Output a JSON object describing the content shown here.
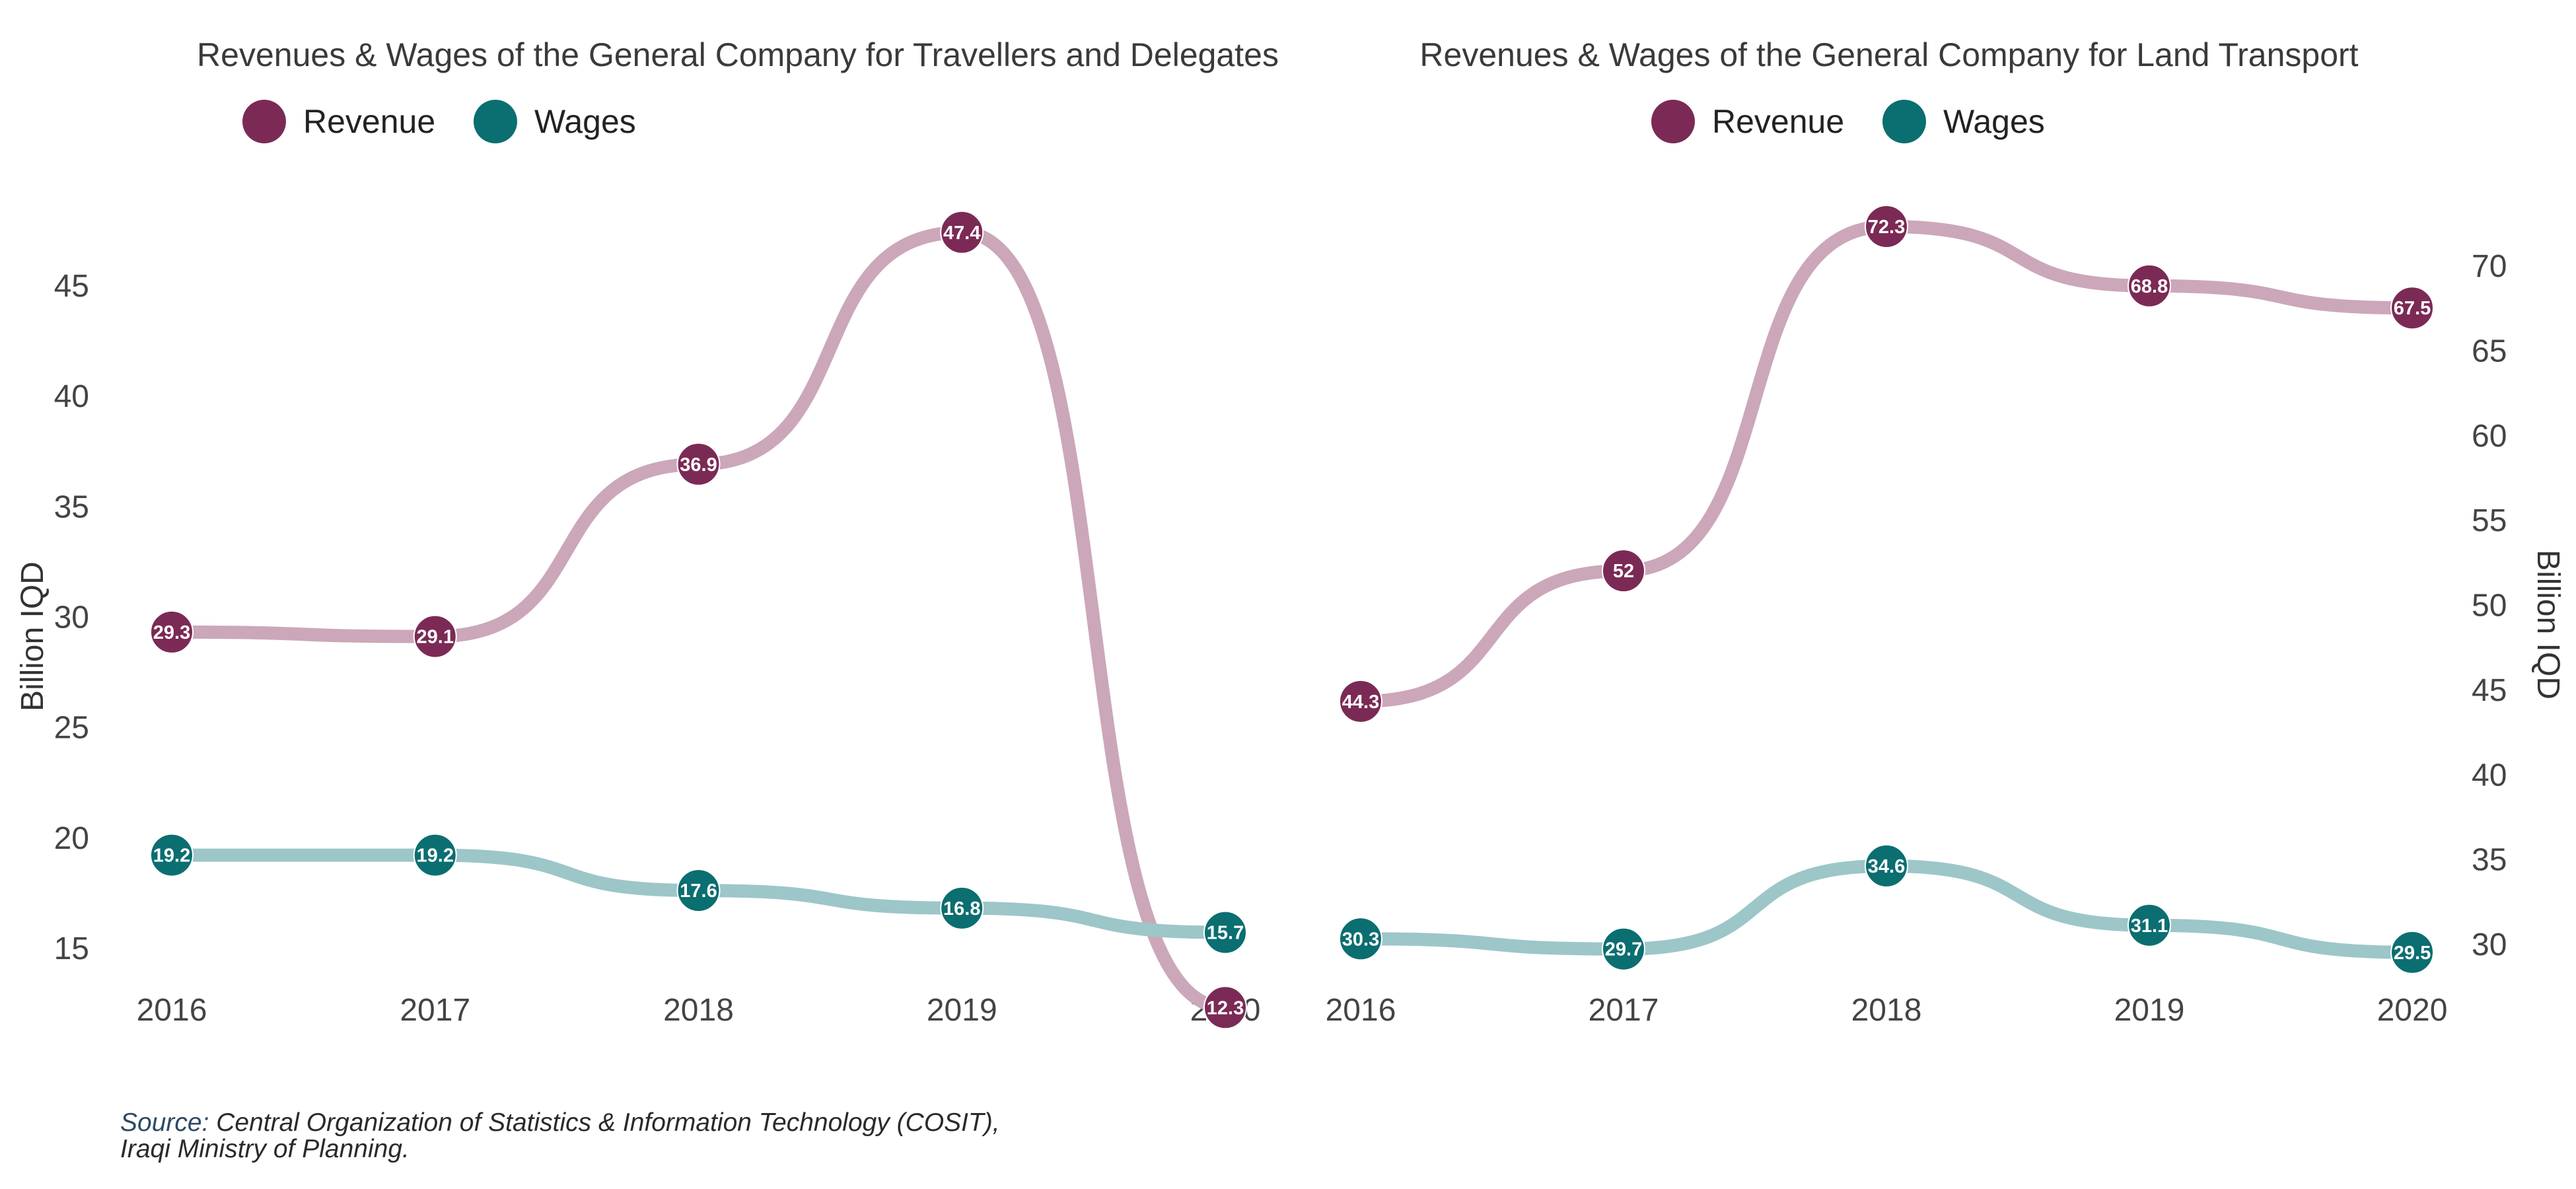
{
  "chart_data": [
    {
      "type": "line",
      "title": "Revenues & Wages of the General Company for Travellers and Delegates",
      "x": [
        "2016",
        "2017",
        "2018",
        "2019",
        "2020"
      ],
      "ylabel": "Billion IQD",
      "y_axis_side": "left",
      "ylim": [
        11,
        48
      ],
      "yticks": [
        15,
        20,
        25,
        30,
        35,
        40,
        45
      ],
      "grid": false,
      "legend_position": "top",
      "series": [
        {
          "name": "Revenue",
          "color": "#7b2a55",
          "line_color": "#cba7b9",
          "values": [
            29.3,
            29.1,
            36.9,
            47.4,
            12.3
          ]
        },
        {
          "name": "Wages",
          "color": "#0b6e70",
          "line_color": "#9dc6c9",
          "values": [
            19.2,
            19.2,
            17.6,
            16.8,
            15.7
          ]
        }
      ]
    },
    {
      "type": "line",
      "title": "Revenues & Wages of the General Company for Land Transport",
      "x": [
        "2016",
        "2017",
        "2018",
        "2019",
        "2020"
      ],
      "ylabel": "Billion IQD",
      "y_axis_side": "right",
      "ylim": [
        27,
        75
      ],
      "yticks": [
        30,
        35,
        40,
        45,
        50,
        55,
        60,
        65,
        70
      ],
      "grid": false,
      "legend_position": "top",
      "series": [
        {
          "name": "Revenue",
          "color": "#7b2a55",
          "line_color": "#cba7b9",
          "values": [
            44.3,
            52,
            72.3,
            68.8,
            67.5
          ]
        },
        {
          "name": "Wages",
          "color": "#0b6e70",
          "line_color": "#9dc6c9",
          "values": [
            30.3,
            29.7,
            34.6,
            31.1,
            29.5
          ]
        }
      ]
    }
  ],
  "source": {
    "label": "Source:",
    "line1": "Central Organization of Statistics & Information Technology (COSIT),",
    "line2": "Iraqi Ministry of Planning."
  }
}
